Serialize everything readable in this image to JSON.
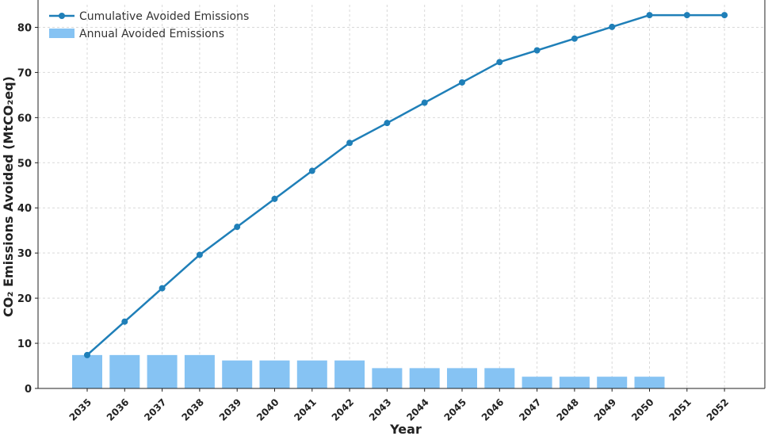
{
  "chart_data": {
    "type": "bar+line",
    "title": "",
    "xlabel": "Year",
    "ylabel": "CO₂ Emissions Avoided (MtCO₂eq)",
    "ylim": [
      0,
      85
    ],
    "yticks": [
      0,
      10,
      20,
      30,
      40,
      50,
      60,
      70,
      80
    ],
    "grid": true,
    "legend_position": "top-left",
    "categories": [
      "2035",
      "2036",
      "2037",
      "2038",
      "2039",
      "2040",
      "2041",
      "2042",
      "2043",
      "2044",
      "2045",
      "2046",
      "2047",
      "2048",
      "2049",
      "2050",
      "2051",
      "2052"
    ],
    "series": [
      {
        "name": "Cumulative Avoided Emissions",
        "kind": "line",
        "color": "#1f7fb8",
        "values": [
          7.4,
          14.8,
          22.2,
          29.6,
          35.8,
          42.0,
          48.2,
          54.4,
          58.8,
          63.3,
          67.8,
          72.3,
          74.9,
          77.5,
          80.1,
          82.7,
          82.7,
          82.7
        ]
      },
      {
        "name": "Annual Avoided Emissions",
        "kind": "bar",
        "color": "#86c3f3",
        "values": [
          7.4,
          7.4,
          7.4,
          7.4,
          6.2,
          6.2,
          6.2,
          6.2,
          4.5,
          4.5,
          4.5,
          4.5,
          2.6,
          2.6,
          2.6,
          2.6,
          0,
          0
        ]
      }
    ]
  }
}
